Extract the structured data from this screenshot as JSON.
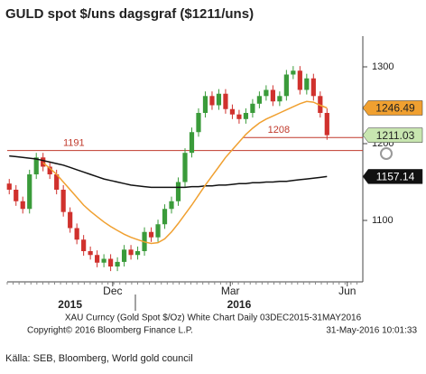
{
  "chart_data": {
    "type": "candlestick",
    "title": "GULD spot $/uns dagsgraf ($1211/uns)",
    "ylim": [
      1020,
      1340
    ],
    "yticks": [
      1100,
      1200,
      1300
    ],
    "xlim": [
      -0.3,
      52.3
    ],
    "xticks": [
      {
        "value": 15.3,
        "label": "Dec"
      },
      {
        "value": 32.7,
        "label": "Mar"
      },
      {
        "value": 50,
        "label": "Jun"
      }
    ],
    "year_labels": [
      {
        "value": 9,
        "label": "2015"
      },
      {
        "value": 34,
        "label": "2016"
      }
    ],
    "up_color": "#3a9b3a",
    "down_color": "#d0312d",
    "open": [
      1148,
      1140,
      1125,
      1115,
      1160,
      1182,
      1170,
      1160,
      1140,
      1111,
      1090,
      1075,
      1060,
      1055,
      1045,
      1050,
      1040,
      1046,
      1062,
      1055,
      1060,
      1085,
      1078,
      1095,
      1115,
      1125,
      1150,
      1188,
      1215,
      1240,
      1262,
      1250,
      1265,
      1245,
      1238,
      1232,
      1240,
      1252,
      1262,
      1270,
      1255,
      1262,
      1290,
      1295,
      1270,
      1285,
      1262,
      1240
    ],
    "high": [
      1154,
      1146,
      1131,
      1166,
      1188,
      1188,
      1176,
      1166,
      1146,
      1117,
      1096,
      1081,
      1066,
      1061,
      1056,
      1056,
      1052,
      1068,
      1068,
      1066,
      1091,
      1091,
      1101,
      1121,
      1131,
      1156,
      1194,
      1221,
      1246,
      1268,
      1268,
      1271,
      1271,
      1251,
      1244,
      1246,
      1258,
      1268,
      1276,
      1276,
      1268,
      1296,
      1301,
      1301,
      1291,
      1291,
      1268,
      1246
    ],
    "low": [
      1134,
      1119,
      1109,
      1109,
      1154,
      1164,
      1154,
      1134,
      1105,
      1084,
      1069,
      1054,
      1049,
      1039,
      1039,
      1034,
      1034,
      1040,
      1049,
      1049,
      1054,
      1072,
      1072,
      1089,
      1109,
      1119,
      1144,
      1182,
      1209,
      1234,
      1244,
      1244,
      1239,
      1232,
      1226,
      1226,
      1234,
      1246,
      1256,
      1249,
      1249,
      1256,
      1284,
      1264,
      1264,
      1256,
      1234,
      1205
    ],
    "close": [
      1140,
      1125,
      1115,
      1160,
      1182,
      1170,
      1160,
      1140,
      1111,
      1090,
      1075,
      1060,
      1055,
      1045,
      1050,
      1040,
      1046,
      1062,
      1055,
      1060,
      1085,
      1078,
      1095,
      1115,
      1125,
      1150,
      1188,
      1215,
      1240,
      1262,
      1250,
      1265,
      1245,
      1238,
      1232,
      1240,
      1252,
      1262,
      1270,
      1255,
      1262,
      1290,
      1295,
      1270,
      1285,
      1262,
      1240,
      1211.03
    ],
    "lines": [
      {
        "color": "#111111",
        "values": [
          1184,
          1183,
          1182,
          1181,
          1180,
          1178,
          1176,
          1174,
          1172,
          1169,
          1166,
          1163,
          1160,
          1157,
          1154,
          1152,
          1150,
          1148,
          1146,
          1145,
          1144,
          1143,
          1143,
          1143,
          1143,
          1143,
          1143,
          1144,
          1144,
          1145,
          1145,
          1146,
          1146,
          1147,
          1148,
          1148,
          1149,
          1149,
          1150,
          1150,
          1151,
          1151,
          1152,
          1153,
          1154,
          1155,
          1156,
          1157.14
        ]
      },
      {
        "color": "#f0a030",
        "values": [
          null,
          null,
          null,
          null,
          null,
          1175,
          1168,
          1160,
          1150,
          1140,
          1130,
          1120,
          1112,
          1105,
          1098,
          1092,
          1087,
          1082,
          1078,
          1075,
          1072,
          1070,
          1071,
          1076,
          1085,
          1096,
          1108,
          1120,
          1133,
          1146,
          1158,
          1170,
          1182,
          1192,
          1202,
          1212,
          1220,
          1227,
          1232,
          1236,
          1240,
          1244,
          1248,
          1252,
          1255,
          1254,
          1250,
          1246.49
        ]
      }
    ],
    "levels": [
      {
        "value": 1191,
        "label": "1191",
        "color": "#c0392b",
        "start": -0.3
      },
      {
        "value": 1208,
        "label": "1208",
        "color": "#c0392b",
        "start": 34.5
      }
    ],
    "price_tags": [
      {
        "value": 1246.49,
        "color": "#f0a030",
        "text_color": "#222222"
      },
      {
        "value": 1211.03,
        "color": "#c8e6b0",
        "text_color": "#222222"
      },
      {
        "value": 1157.14,
        "color": "#111111",
        "text_color": "#ffffff"
      }
    ],
    "footer": [
      "XAU Curncy (Gold Spot  $/Oz) White Chart  Daily 03DEC2015-31MAY2016",
      "Copyright© 2016 Bloomberg Finance L.P.",
      "31-May-2016 10:01:33"
    ],
    "source": "Källa: SEB, Bloomberg, World gold council"
  }
}
